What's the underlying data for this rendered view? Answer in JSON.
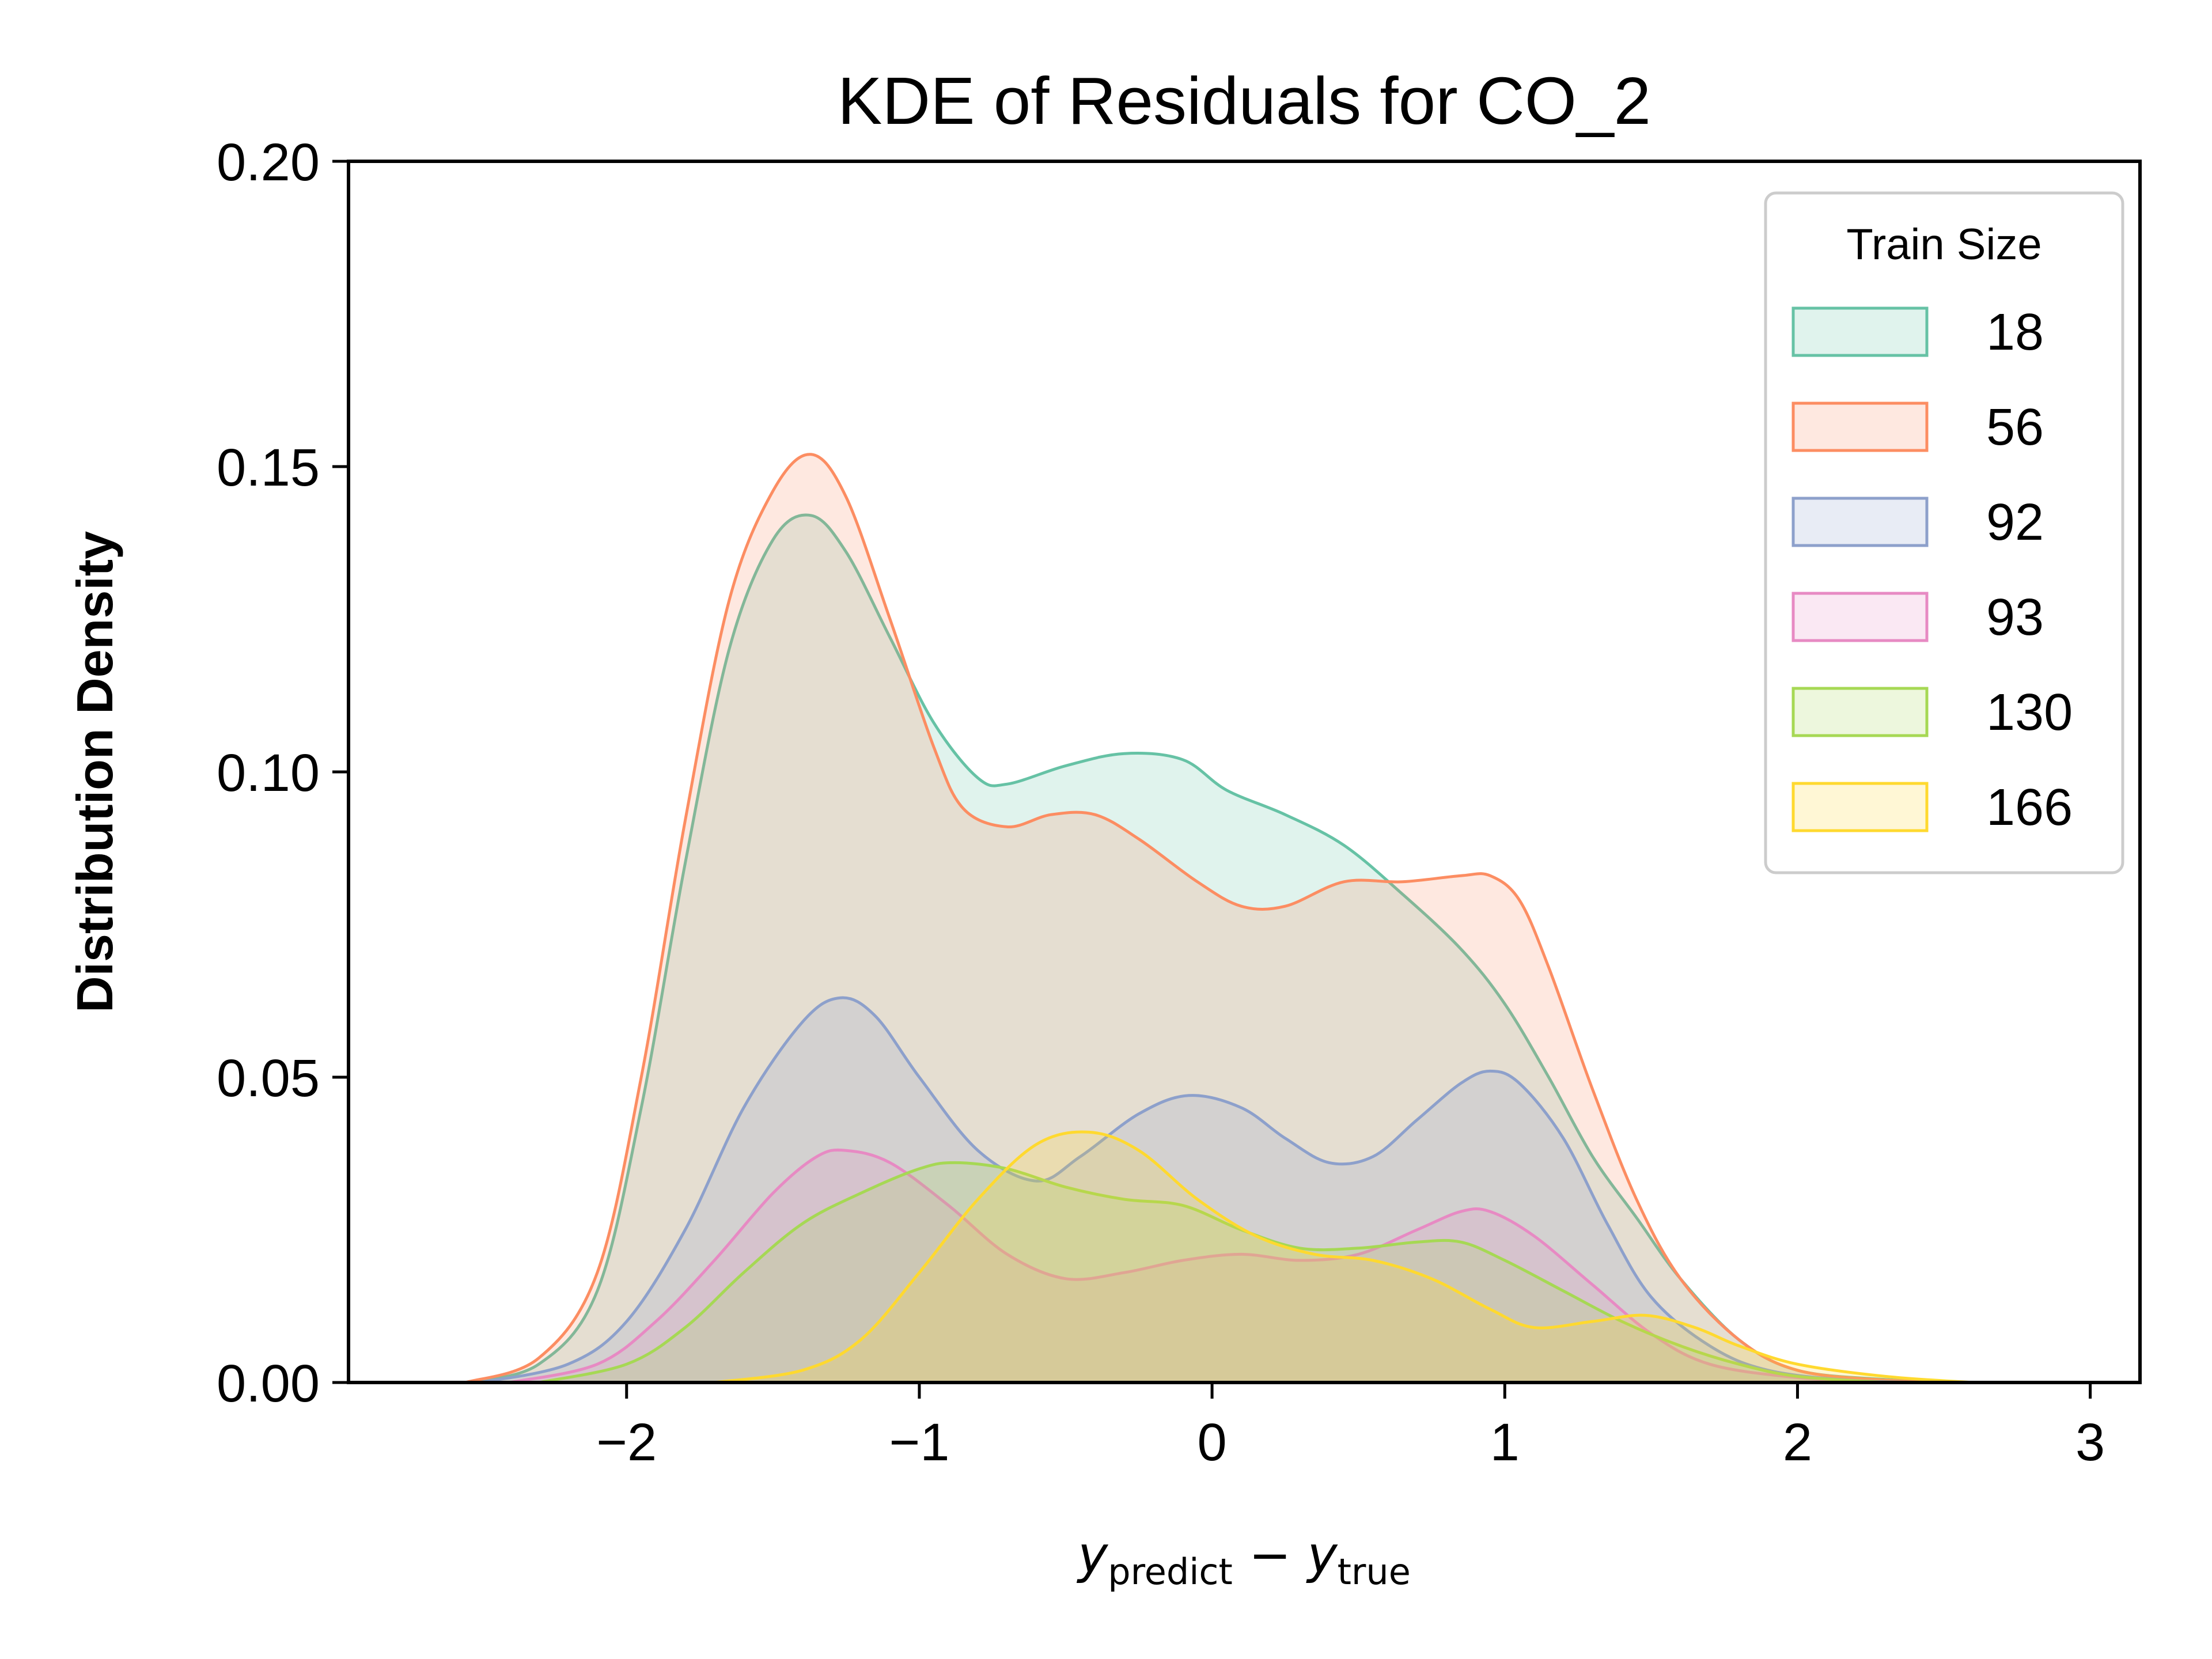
{
  "chart_data": {
    "type": "area",
    "title": "KDE of Residuals for CO_2",
    "ylabel": "Distribution Density",
    "xlabel": {
      "base": "y",
      "sub": "predict",
      "operator": " − ",
      "base2": "y",
      "sub2": "true"
    },
    "xlim": [
      -2.95,
      3.17
    ],
    "ylim": [
      0,
      0.2
    ],
    "xticks": [
      -2,
      -1,
      0,
      1,
      2,
      3
    ],
    "xtick_labels": [
      "−2",
      "−1",
      "0",
      "1",
      "2",
      "3"
    ],
    "yticks": [
      0,
      0.05,
      0.1,
      0.15,
      0.2
    ],
    "ytick_labels": [
      "0.00",
      "0.05",
      "0.10",
      "0.15",
      "0.20"
    ],
    "legend": {
      "title": "Train Size",
      "position": "top-right"
    },
    "grid": false,
    "series": [
      {
        "name": "18",
        "color": "#66c2a5",
        "points": [
          [
            -2.55,
            0
          ],
          [
            -2.3,
            0.003
          ],
          [
            -2.1,
            0.015
          ],
          [
            -1.95,
            0.045
          ],
          [
            -1.8,
            0.085
          ],
          [
            -1.65,
            0.12
          ],
          [
            -1.5,
            0.138
          ],
          [
            -1.37,
            0.142
          ],
          [
            -1.25,
            0.136
          ],
          [
            -1.1,
            0.122
          ],
          [
            -0.95,
            0.108
          ],
          [
            -0.8,
            0.099
          ],
          [
            -0.7,
            0.098
          ],
          [
            -0.5,
            0.101
          ],
          [
            -0.3,
            0.103
          ],
          [
            -0.1,
            0.102
          ],
          [
            0.05,
            0.097
          ],
          [
            0.25,
            0.093
          ],
          [
            0.45,
            0.088
          ],
          [
            0.65,
            0.08
          ],
          [
            0.85,
            0.071
          ],
          [
            1.0,
            0.062
          ],
          [
            1.15,
            0.05
          ],
          [
            1.3,
            0.037
          ],
          [
            1.45,
            0.027
          ],
          [
            1.6,
            0.017
          ],
          [
            1.8,
            0.007
          ],
          [
            2.0,
            0.002
          ],
          [
            2.3,
            0.0005
          ],
          [
            2.6,
            0
          ]
        ]
      },
      {
        "name": "56",
        "color": "#fc8d62",
        "points": [
          [
            -2.55,
            0
          ],
          [
            -2.3,
            0.004
          ],
          [
            -2.1,
            0.018
          ],
          [
            -1.95,
            0.05
          ],
          [
            -1.8,
            0.092
          ],
          [
            -1.65,
            0.128
          ],
          [
            -1.5,
            0.146
          ],
          [
            -1.37,
            0.152
          ],
          [
            -1.25,
            0.145
          ],
          [
            -1.1,
            0.125
          ],
          [
            -0.95,
            0.104
          ],
          [
            -0.85,
            0.094
          ],
          [
            -0.7,
            0.091
          ],
          [
            -0.55,
            0.093
          ],
          [
            -0.4,
            0.093
          ],
          [
            -0.25,
            0.089
          ],
          [
            -0.05,
            0.082
          ],
          [
            0.1,
            0.078
          ],
          [
            0.25,
            0.078
          ],
          [
            0.45,
            0.082
          ],
          [
            0.65,
            0.082
          ],
          [
            0.85,
            0.083
          ],
          [
            0.95,
            0.083
          ],
          [
            1.05,
            0.079
          ],
          [
            1.15,
            0.068
          ],
          [
            1.3,
            0.048
          ],
          [
            1.45,
            0.03
          ],
          [
            1.6,
            0.017
          ],
          [
            1.8,
            0.007
          ],
          [
            2.0,
            0.002
          ],
          [
            2.3,
            0.0004
          ],
          [
            2.6,
            0
          ]
        ]
      },
      {
        "name": "92",
        "color": "#8da0cb",
        "points": [
          [
            -2.5,
            0
          ],
          [
            -2.2,
            0.003
          ],
          [
            -2.0,
            0.01
          ],
          [
            -1.8,
            0.025
          ],
          [
            -1.6,
            0.045
          ],
          [
            -1.4,
            0.059
          ],
          [
            -1.27,
            0.063
          ],
          [
            -1.15,
            0.06
          ],
          [
            -1.0,
            0.05
          ],
          [
            -0.8,
            0.038
          ],
          [
            -0.6,
            0.033
          ],
          [
            -0.45,
            0.037
          ],
          [
            -0.25,
            0.044
          ],
          [
            -0.08,
            0.047
          ],
          [
            0.1,
            0.045
          ],
          [
            0.25,
            0.04
          ],
          [
            0.4,
            0.036
          ],
          [
            0.55,
            0.037
          ],
          [
            0.7,
            0.043
          ],
          [
            0.85,
            0.049
          ],
          [
            0.95,
            0.051
          ],
          [
            1.05,
            0.049
          ],
          [
            1.2,
            0.04
          ],
          [
            1.35,
            0.026
          ],
          [
            1.5,
            0.014
          ],
          [
            1.7,
            0.006
          ],
          [
            1.9,
            0.002
          ],
          [
            2.2,
            0.0003
          ],
          [
            2.5,
            0
          ]
        ]
      },
      {
        "name": "93",
        "color": "#e78ac3",
        "points": [
          [
            -2.4,
            0
          ],
          [
            -2.1,
            0.003
          ],
          [
            -1.9,
            0.01
          ],
          [
            -1.7,
            0.02
          ],
          [
            -1.5,
            0.031
          ],
          [
            -1.35,
            0.037
          ],
          [
            -1.25,
            0.038
          ],
          [
            -1.1,
            0.036
          ],
          [
            -0.9,
            0.029
          ],
          [
            -0.7,
            0.021
          ],
          [
            -0.5,
            0.017
          ],
          [
            -0.3,
            0.018
          ],
          [
            -0.1,
            0.02
          ],
          [
            0.1,
            0.021
          ],
          [
            0.3,
            0.02
          ],
          [
            0.5,
            0.021
          ],
          [
            0.7,
            0.025
          ],
          [
            0.85,
            0.028
          ],
          [
            0.95,
            0.028
          ],
          [
            1.1,
            0.024
          ],
          [
            1.3,
            0.016
          ],
          [
            1.5,
            0.008
          ],
          [
            1.7,
            0.003
          ],
          [
            2.0,
            0.0008
          ],
          [
            2.3,
            0
          ]
        ]
      },
      {
        "name": "130",
        "color": "#a6d854",
        "points": [
          [
            -2.3,
            0
          ],
          [
            -2.0,
            0.003
          ],
          [
            -1.8,
            0.009
          ],
          [
            -1.6,
            0.018
          ],
          [
            -1.4,
            0.026
          ],
          [
            -1.2,
            0.031
          ],
          [
            -1.0,
            0.035
          ],
          [
            -0.88,
            0.036
          ],
          [
            -0.7,
            0.035
          ],
          [
            -0.5,
            0.032
          ],
          [
            -0.3,
            0.03
          ],
          [
            -0.1,
            0.029
          ],
          [
            0.1,
            0.025
          ],
          [
            0.3,
            0.022
          ],
          [
            0.5,
            0.022
          ],
          [
            0.7,
            0.023
          ],
          [
            0.85,
            0.023
          ],
          [
            1.0,
            0.02
          ],
          [
            1.2,
            0.015
          ],
          [
            1.4,
            0.01
          ],
          [
            1.6,
            0.006
          ],
          [
            1.8,
            0.003
          ],
          [
            2.0,
            0.001
          ],
          [
            2.3,
            0
          ]
        ]
      },
      {
        "name": "166",
        "color": "#ffd92f",
        "points": [
          [
            -1.7,
            0
          ],
          [
            -1.4,
            0.002
          ],
          [
            -1.2,
            0.007
          ],
          [
            -1.0,
            0.018
          ],
          [
            -0.8,
            0.03
          ],
          [
            -0.6,
            0.039
          ],
          [
            -0.42,
            0.041
          ],
          [
            -0.25,
            0.038
          ],
          [
            -0.05,
            0.03
          ],
          [
            0.15,
            0.024
          ],
          [
            0.35,
            0.021
          ],
          [
            0.55,
            0.02
          ],
          [
            0.75,
            0.017
          ],
          [
            0.95,
            0.012
          ],
          [
            1.1,
            0.009
          ],
          [
            1.3,
            0.01
          ],
          [
            1.48,
            0.011
          ],
          [
            1.65,
            0.009
          ],
          [
            1.8,
            0.006
          ],
          [
            2.0,
            0.003
          ],
          [
            2.3,
            0.001
          ],
          [
            2.6,
            0
          ]
        ]
      }
    ]
  }
}
